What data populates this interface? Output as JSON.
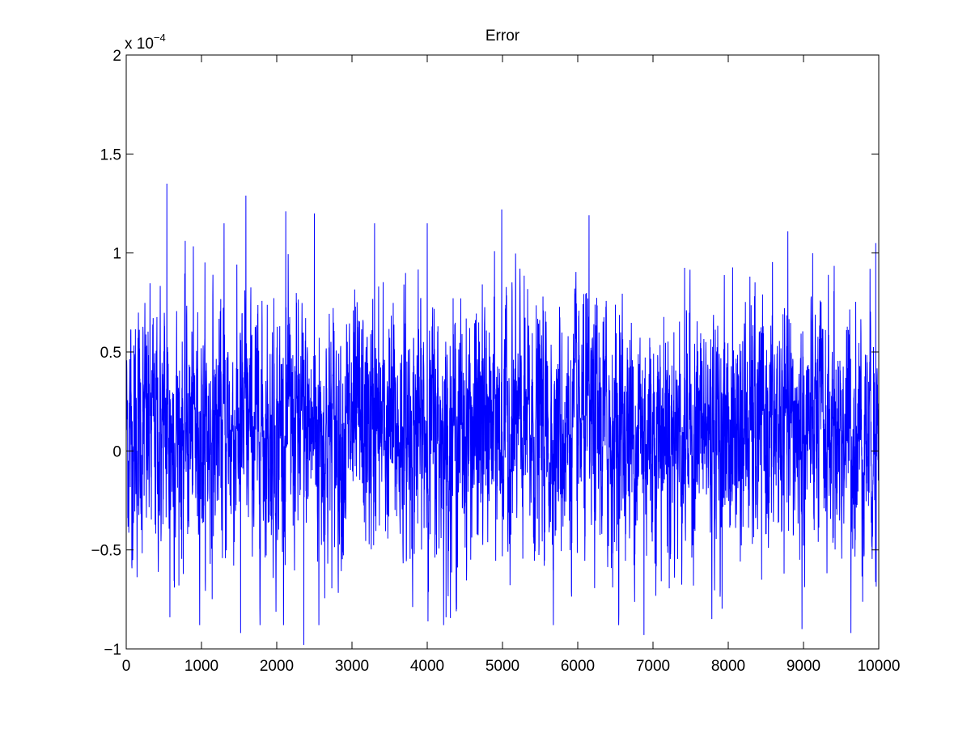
{
  "chart_data": {
    "type": "line",
    "title": "Error",
    "xlabel": "",
    "ylabel": "",
    "xlim": [
      0,
      10000
    ],
    "ylim": [
      -1,
      2
    ],
    "y_exponent_label": {
      "base": "x 10",
      "exponent": "−4"
    },
    "x_ticks": [
      0,
      1000,
      2000,
      3000,
      4000,
      5000,
      6000,
      7000,
      8000,
      9000,
      10000
    ],
    "y_ticks": [
      -1,
      -0.5,
      0,
      0.5,
      1,
      1.5,
      2
    ],
    "y_tick_labels": [
      "−1",
      "−0.5",
      "0",
      "0.5",
      "1",
      "1.5",
      "2"
    ],
    "x_tick_labels": [
      "0",
      "1000",
      "2000",
      "3000",
      "4000",
      "5000",
      "6000",
      "7000",
      "8000",
      "9000",
      "10000"
    ],
    "grid": false,
    "series": [
      {
        "color": "#0000ff",
        "n_points": 10000,
        "approx_mean": 0.1,
        "approx_std": 0.3,
        "notable_peaks": [
          {
            "x": 540,
            "y": 1.35
          },
          {
            "x": 1590,
            "y": 1.29
          },
          {
            "x": 1300,
            "y": 1.15
          },
          {
            "x": 2120,
            "y": 1.21
          },
          {
            "x": 2500,
            "y": 1.2
          },
          {
            "x": 3300,
            "y": 1.15
          },
          {
            "x": 4000,
            "y": 1.15
          },
          {
            "x": 4990,
            "y": 1.22
          },
          {
            "x": 6150,
            "y": 1.19
          },
          {
            "x": 9960,
            "y": 1.05
          }
        ],
        "notable_troughs": [
          {
            "x": 1520,
            "y": -0.92
          },
          {
            "x": 2360,
            "y": -0.98
          },
          {
            "x": 2560,
            "y": -0.88
          },
          {
            "x": 580,
            "y": -0.84
          },
          {
            "x": 4250,
            "y": -0.84
          },
          {
            "x": 6880,
            "y": -0.93
          },
          {
            "x": 8980,
            "y": -0.9
          },
          {
            "x": 9630,
            "y": -0.92
          }
        ]
      }
    ]
  }
}
